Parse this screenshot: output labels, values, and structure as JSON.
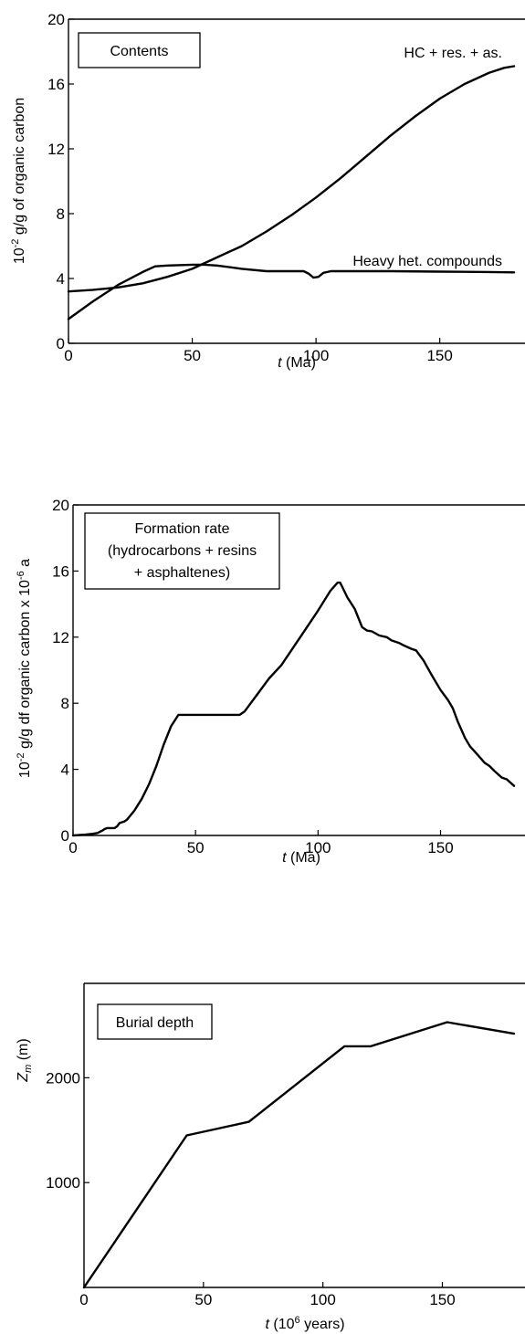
{
  "chart_data": [
    {
      "type": "line",
      "title": "Contents",
      "xlabel_italic": "t",
      "xlabel_rest": " (Ma)",
      "ylabel_base": "10",
      "ylabel_sup": "-2",
      "ylabel_rest": " g/g of organic carbon",
      "xlim": [
        0,
        180
      ],
      "ylim": [
        0,
        20
      ],
      "xticks": [
        0,
        50,
        100,
        150
      ],
      "yticks": [
        0,
        4,
        8,
        12,
        16,
        20
      ],
      "series": [
        {
          "name": "HC + res. + as.",
          "x": [
            0,
            10,
            20,
            30,
            40,
            50,
            60,
            70,
            80,
            90,
            100,
            110,
            120,
            130,
            140,
            150,
            160,
            170,
            176,
            180
          ],
          "y": [
            3.2,
            3.3,
            3.45,
            3.7,
            4.1,
            4.6,
            5.3,
            6.0,
            6.9,
            7.9,
            9.0,
            10.2,
            11.5,
            12.8,
            14.0,
            15.1,
            16.0,
            16.7,
            17.0,
            17.1
          ]
        },
        {
          "name": "Heavy het. compounds",
          "x": [
            0,
            10,
            20,
            30,
            35,
            40,
            50,
            55,
            60,
            70,
            80,
            90,
            95,
            97,
            99,
            101,
            103,
            106,
            110,
            130,
            150,
            170,
            180
          ],
          "y": [
            1.5,
            2.6,
            3.6,
            4.4,
            4.75,
            4.8,
            4.85,
            4.85,
            4.8,
            4.6,
            4.45,
            4.45,
            4.45,
            4.3,
            4.05,
            4.1,
            4.35,
            4.45,
            4.45,
            4.45,
            4.42,
            4.4,
            4.38
          ]
        }
      ]
    },
    {
      "type": "line",
      "title_lines": [
        "Formation rate",
        "(hydrocarbons + resins",
        "+ asphaltenes)"
      ],
      "xlabel_italic": "t",
      "xlabel_rest": " (Ma)",
      "ylabel_base": "10",
      "ylabel_sup": "-2",
      "ylabel_mid": " g/g df organic carbon x 10",
      "ylabel_sup2": "-6",
      "ylabel_end": " a",
      "xlim": [
        0,
        180
      ],
      "ylim": [
        0,
        20
      ],
      "xticks": [
        0,
        50,
        100,
        150
      ],
      "yticks": [
        0,
        4,
        8,
        12,
        16,
        20
      ],
      "series": [
        {
          "name": "",
          "x": [
            0,
            5,
            8,
            10,
            12,
            13,
            14,
            15,
            16,
            17,
            18,
            19,
            20,
            21,
            22,
            25,
            28,
            31,
            34,
            37,
            40,
            43,
            50,
            60,
            68,
            70,
            75,
            80,
            85,
            90,
            95,
            100,
            105,
            108,
            109,
            110,
            112,
            115,
            118,
            120,
            122,
            125,
            128,
            130,
            133,
            135,
            138,
            140,
            143,
            146,
            150,
            153,
            155,
            157,
            160,
            162,
            165,
            168,
            170,
            172,
            175,
            177,
            180
          ],
          "y": [
            0,
            0.05,
            0.1,
            0.15,
            0.3,
            0.4,
            0.45,
            0.45,
            0.45,
            0.45,
            0.55,
            0.75,
            0.8,
            0.85,
            0.95,
            1.5,
            2.2,
            3.1,
            4.2,
            5.5,
            6.6,
            7.3,
            7.3,
            7.3,
            7.3,
            7.5,
            8.5,
            9.5,
            10.3,
            11.4,
            12.5,
            13.6,
            14.8,
            15.3,
            15.3,
            15.0,
            14.4,
            13.7,
            12.6,
            12.4,
            12.35,
            12.1,
            12.0,
            11.8,
            11.65,
            11.5,
            11.3,
            11.2,
            10.6,
            9.8,
            8.8,
            8.2,
            7.7,
            6.9,
            5.9,
            5.4,
            4.9,
            4.4,
            4.2,
            3.9,
            3.5,
            3.4,
            3.0
          ]
        }
      ]
    },
    {
      "type": "line",
      "title": "Burial depth",
      "xlabel_italic": "t",
      "xlabel_rest": " (10",
      "xlabel_sup": "6",
      "xlabel_end": " years)",
      "ylabel_italic": "Z",
      "ylabel_sub": "m",
      "ylabel_rest": " (m)",
      "xlim": [
        0,
        180
      ],
      "ylim": [
        0,
        2900
      ],
      "xticks": [
        0,
        50,
        100,
        150
      ],
      "yticks": [
        1000,
        2000
      ],
      "series": [
        {
          "name": "",
          "x": [
            0,
            43,
            69,
            109,
            120,
            152,
            180
          ],
          "y": [
            0,
            1450,
            1580,
            2300,
            2300,
            2530,
            2420
          ]
        }
      ]
    }
  ]
}
